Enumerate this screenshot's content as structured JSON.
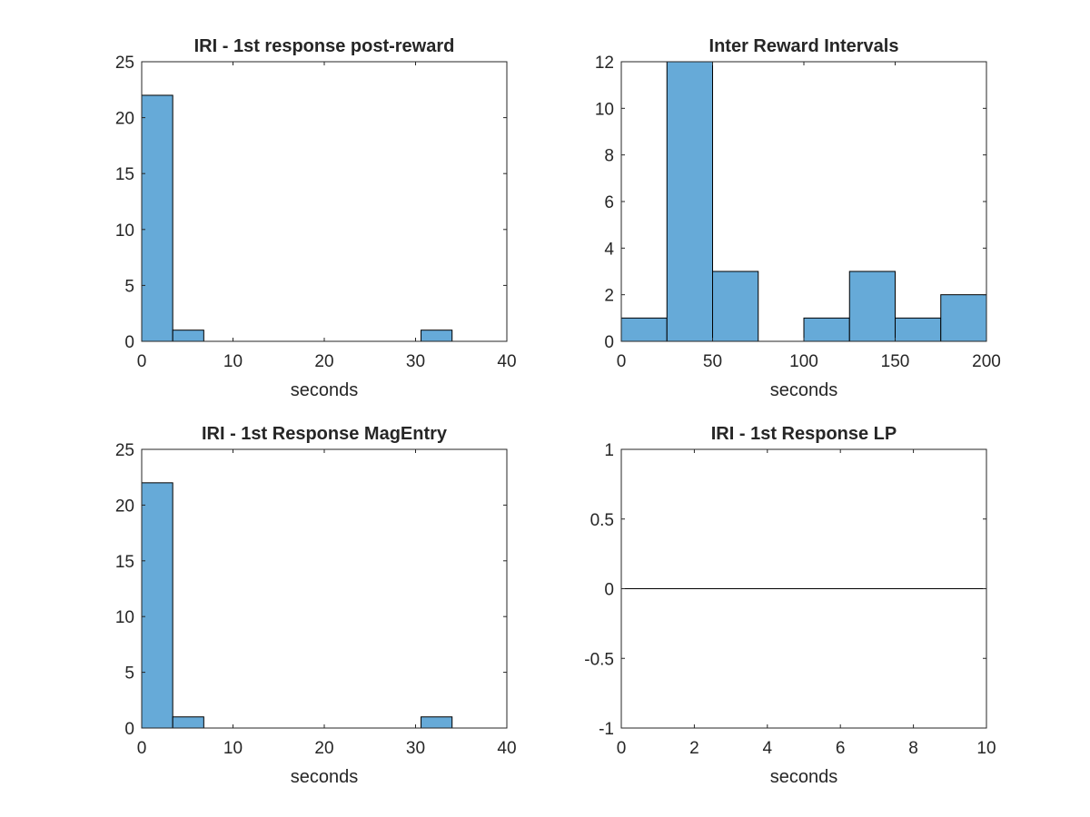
{
  "colors": {
    "bar_fill": "#66aad8",
    "axis": "#262626"
  },
  "chart_data": [
    {
      "type": "bar",
      "title": "IRI - 1st response post-reward",
      "xlabel": "seconds",
      "ylabel": "",
      "xlim": [
        0,
        40
      ],
      "ylim": [
        0,
        25
      ],
      "xticks": [
        0,
        10,
        20,
        30,
        40
      ],
      "xtick_labels": [
        "0",
        "10",
        "20",
        "30",
        "40"
      ],
      "yticks": [
        0,
        5,
        10,
        15,
        20,
        25
      ],
      "ytick_labels": [
        "0",
        "5",
        "10",
        "15",
        "20",
        "25"
      ],
      "bin_edges": [
        0,
        3.4,
        6.8,
        10.2,
        13.6,
        17.0,
        20.4,
        23.8,
        27.2,
        30.6,
        34.0
      ],
      "values": [
        22,
        1,
        0,
        0,
        0,
        0,
        0,
        0,
        0,
        1
      ]
    },
    {
      "type": "bar",
      "title": "Inter Reward Intervals",
      "xlabel": "seconds",
      "ylabel": "",
      "xlim": [
        0,
        200
      ],
      "ylim": [
        0,
        12
      ],
      "xticks": [
        0,
        50,
        100,
        150,
        200
      ],
      "xtick_labels": [
        "0",
        "50",
        "100",
        "150",
        "200"
      ],
      "yticks": [
        0,
        2,
        4,
        6,
        8,
        10,
        12
      ],
      "ytick_labels": [
        "0",
        "2",
        "4",
        "6",
        "8",
        "10",
        "12"
      ],
      "bin_edges": [
        0,
        25,
        50,
        75,
        100,
        125,
        150,
        175,
        200
      ],
      "values": [
        1,
        12,
        3,
        0,
        1,
        3,
        1,
        2
      ]
    },
    {
      "type": "bar",
      "title": "IRI - 1st Response MagEntry",
      "xlabel": "seconds",
      "ylabel": "",
      "xlim": [
        0,
        40
      ],
      "ylim": [
        0,
        25
      ],
      "xticks": [
        0,
        10,
        20,
        30,
        40
      ],
      "xtick_labels": [
        "0",
        "10",
        "20",
        "30",
        "40"
      ],
      "yticks": [
        0,
        5,
        10,
        15,
        20,
        25
      ],
      "ytick_labels": [
        "0",
        "5",
        "10",
        "15",
        "20",
        "25"
      ],
      "bin_edges": [
        0,
        3.4,
        6.8,
        10.2,
        13.6,
        17.0,
        20.4,
        23.8,
        27.2,
        30.6,
        34.0
      ],
      "values": [
        22,
        1,
        0,
        0,
        0,
        0,
        0,
        0,
        0,
        1
      ]
    },
    {
      "type": "line",
      "title": "IRI - 1st Response LP",
      "xlabel": "seconds",
      "ylabel": "",
      "xlim": [
        0,
        10
      ],
      "ylim": [
        -1,
        1
      ],
      "xticks": [
        0,
        2,
        4,
        6,
        8,
        10
      ],
      "xtick_labels": [
        "0",
        "2",
        "4",
        "6",
        "8",
        "10"
      ],
      "yticks": [
        -1,
        -0.5,
        0,
        0.5,
        1
      ],
      "ytick_labels": [
        "-1",
        "-0.5",
        "0",
        "0.5",
        "1"
      ],
      "x": [
        0,
        10
      ],
      "y": [
        0,
        0
      ]
    }
  ]
}
